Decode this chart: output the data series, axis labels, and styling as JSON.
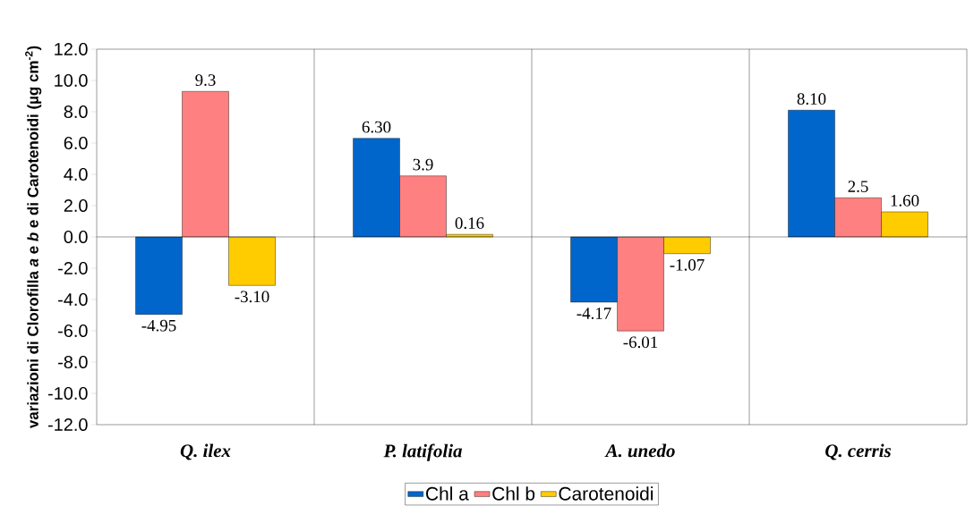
{
  "chart_data": {
    "type": "bar",
    "ylabel": "variazioni di Clorofilla *a* e *b* e di Carotenoidi (µg cm$^{-2}$)",
    "categories": [
      "Q. ilex",
      "P. latifolia",
      "A. unedo",
      "Q. cerris"
    ],
    "series": [
      {
        "name": "Chl a",
        "color": "#0066cc",
        "values": [
          -4.95,
          6.3,
          -4.17,
          8.1
        ],
        "value_labels": [
          "-4.95",
          "6.30",
          "-4.17",
          "8.10"
        ]
      },
      {
        "name": "Chl b",
        "color": "#ff8080",
        "values": [
          9.3,
          3.9,
          -6.01,
          2.5
        ],
        "value_labels": [
          "9.3",
          "3.9",
          "-6.01",
          "2.5"
        ]
      },
      {
        "name": "Carotenoidi",
        "color": "#ffcc00",
        "values": [
          -3.1,
          0.16,
          -1.07,
          1.6
        ],
        "value_labels": [
          "-3.10",
          "0.16",
          "-1.07",
          "1.60"
        ]
      }
    ],
    "ylim": [
      -12,
      12
    ],
    "yticks": [
      {
        "value": -12,
        "label": "-12.0"
      },
      {
        "value": -10,
        "label": "-10.0"
      },
      {
        "value": -8,
        "label": "-8.0"
      },
      {
        "value": -6,
        "label": "-6.0"
      },
      {
        "value": -4,
        "label": "-4.0"
      },
      {
        "value": -2,
        "label": "-2.0"
      },
      {
        "value": 0,
        "label": "0.0"
      },
      {
        "value": 2,
        "label": "2.0"
      },
      {
        "value": 4,
        "label": "4.0"
      },
      {
        "value": 6,
        "label": "6.0"
      },
      {
        "value": 8,
        "label": "8.0"
      },
      {
        "value": 10,
        "label": "10.0"
      },
      {
        "value": 12,
        "label": "12.0"
      }
    ],
    "grid": "x",
    "legend": "bottom",
    "ref_lines": [
      {
        "axis": "y",
        "value": 0
      }
    ]
  }
}
